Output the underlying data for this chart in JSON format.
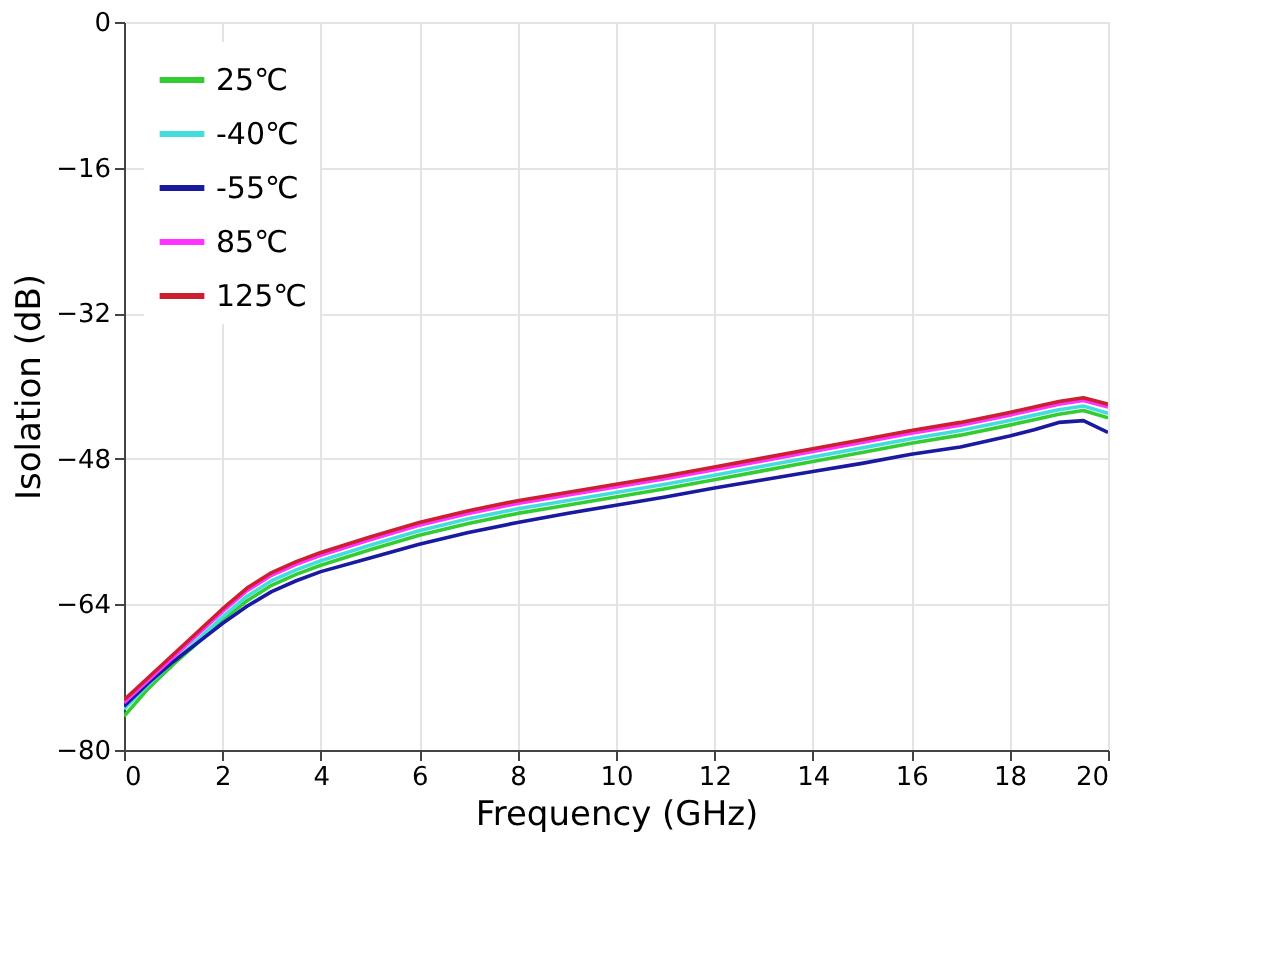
{
  "chart_data": {
    "type": "line",
    "xlabel": "Frequency  (GHz)",
    "ylabel": "Isolation (dB)",
    "x": [
      0,
      0.5,
      1,
      1.5,
      2,
      2.5,
      3,
      3.5,
      4,
      5,
      6,
      7,
      8,
      9,
      10,
      11,
      12,
      13,
      14,
      15,
      16,
      17,
      18,
      18.5,
      19,
      19.5,
      20
    ],
    "series": [
      {
        "name": "25℃",
        "color": "#33cc33",
        "values": [
          -76.3,
          -73.2,
          -70.6,
          -68.2,
          -65.7,
          -63.6,
          -61.9,
          -60.7,
          -59.7,
          -58.0,
          -56.4,
          -55.1,
          -54.0,
          -53.1,
          -52.2,
          -51.3,
          -50.3,
          -49.3,
          -48.3,
          -47.3,
          -46.3,
          -45.4,
          -44.3,
          -43.7,
          -43.1,
          -42.7,
          -43.5
        ]
      },
      {
        "name": "-40℃",
        "color": "#44dddd",
        "values": [
          -75.5,
          -72.8,
          -70.3,
          -67.9,
          -65.4,
          -63.1,
          -61.4,
          -60.2,
          -59.2,
          -57.5,
          -55.9,
          -54.6,
          -53.5,
          -52.6,
          -51.7,
          -50.8,
          -49.8,
          -48.8,
          -47.8,
          -46.8,
          -45.8,
          -44.9,
          -43.8,
          -43.2,
          -42.6,
          -42.2,
          -43.0
        ]
      },
      {
        "name": "-55℃",
        "color": "#1a1aa0",
        "values": [
          -75.2,
          -72.6,
          -70.3,
          -68.2,
          -66.1,
          -64.2,
          -62.6,
          -61.4,
          -60.4,
          -58.9,
          -57.4,
          -56.1,
          -55.0,
          -54.0,
          -53.1,
          -52.2,
          -51.2,
          -50.3,
          -49.4,
          -48.5,
          -47.5,
          -46.7,
          -45.5,
          -44.8,
          -44.0,
          -43.8,
          -45.1
        ]
      },
      {
        "name": "85℃",
        "color": "#ff33ff",
        "values": [
          -74.8,
          -72.3,
          -69.8,
          -67.3,
          -64.8,
          -62.5,
          -60.8,
          -59.6,
          -58.6,
          -56.9,
          -55.3,
          -54.0,
          -52.9,
          -52.0,
          -51.1,
          -50.2,
          -49.2,
          -48.2,
          -47.2,
          -46.2,
          -45.2,
          -44.3,
          -43.2,
          -42.6,
          -42.0,
          -41.6,
          -42.3
        ]
      },
      {
        "name": "125℃",
        "color": "#cc1f2f",
        "values": [
          -74.5,
          -72.0,
          -69.5,
          -67.0,
          -64.5,
          -62.2,
          -60.5,
          -59.3,
          -58.3,
          -56.6,
          -55.0,
          -53.7,
          -52.6,
          -51.7,
          -50.8,
          -49.9,
          -48.9,
          -47.9,
          -46.9,
          -45.9,
          -44.9,
          -44.0,
          -42.9,
          -42.3,
          -41.7,
          -41.3,
          -42.0
        ]
      }
    ],
    "xlim": [
      0,
      20
    ],
    "xticks": [
      0,
      2,
      4,
      6,
      8,
      10,
      12,
      14,
      16,
      18,
      20
    ],
    "ylim": [
      -80,
      0
    ],
    "yticks": [
      -80,
      -64,
      -48,
      -32,
      -16,
      0
    ],
    "grid": true,
    "legend": "top left",
    "marker": "none",
    "line_style": "solid"
  }
}
